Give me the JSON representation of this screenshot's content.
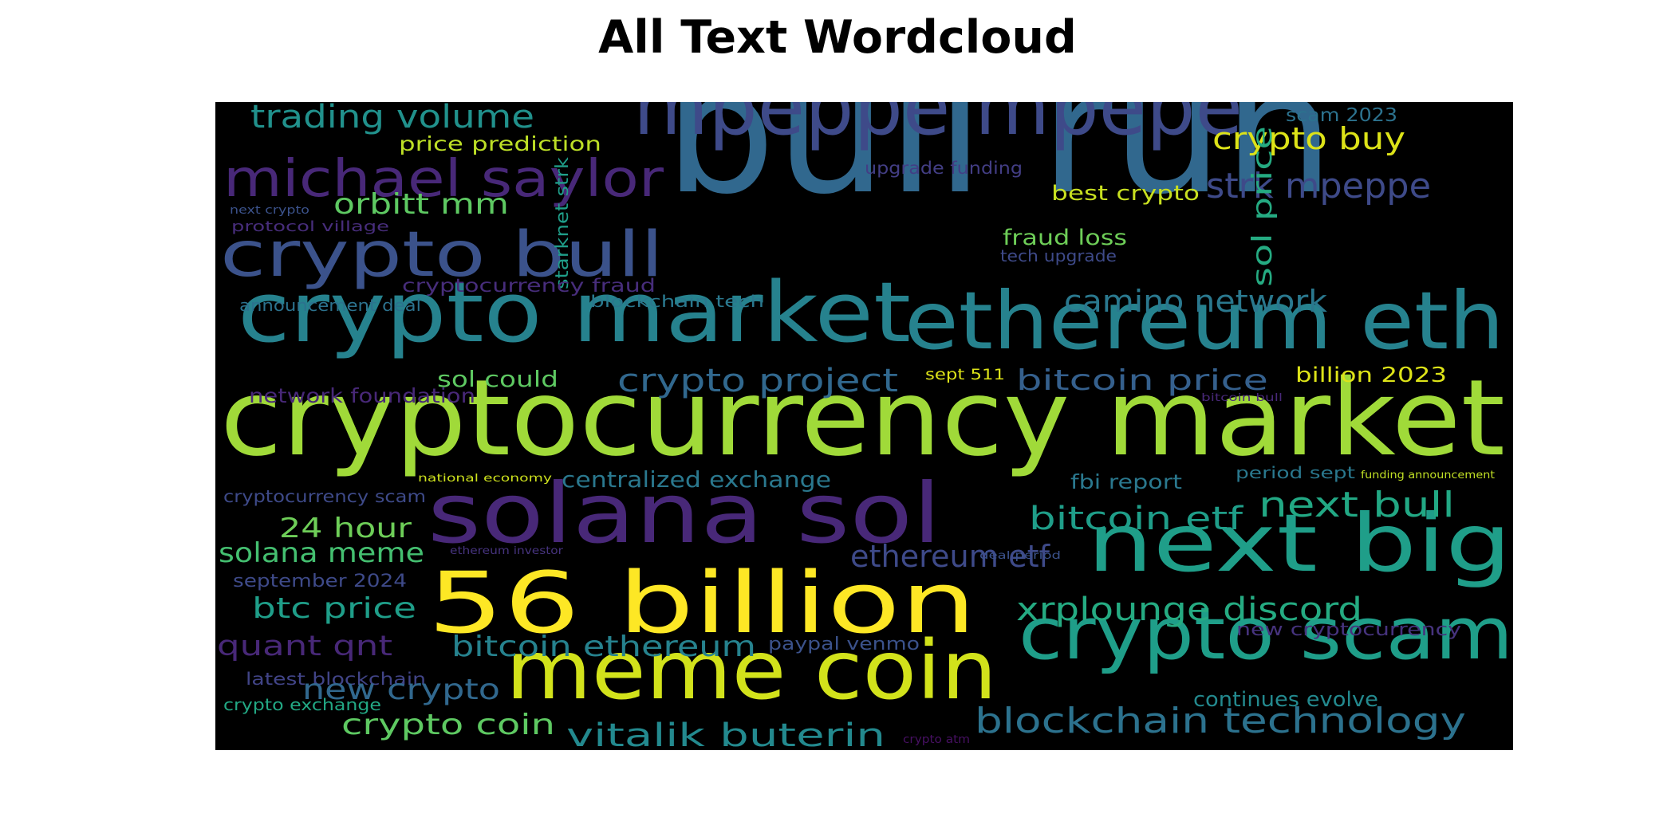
{
  "chart_data": {
    "type": "wordcloud",
    "title": "All Text Wordcloud",
    "background": "#000000",
    "words": [
      {
        "text": "bull run",
        "color": "#31688e"
      },
      {
        "text": "cryptocurrency market",
        "color": "#a0da39"
      },
      {
        "text": "crypto market",
        "color": "#26828e"
      },
      {
        "text": "mpeppe mpepe",
        "color": "#3e4a89"
      },
      {
        "text": "ethereum eth",
        "color": "#26828e"
      },
      {
        "text": "solana sol",
        "color": "#482878"
      },
      {
        "text": "56 billion",
        "color": "#fde725"
      },
      {
        "text": "meme coin",
        "color": "#d2e21b"
      },
      {
        "text": "next big",
        "color": "#1f9e89"
      },
      {
        "text": "crypto scam",
        "color": "#1f9e89"
      },
      {
        "text": "crypto bull",
        "color": "#3b528b"
      },
      {
        "text": "michael saylor",
        "color": "#482878"
      },
      {
        "text": "trading volume",
        "color": "#21918c"
      },
      {
        "text": "price prediction",
        "color": "#bddf26"
      },
      {
        "text": "crypto buy",
        "color": "#dde318"
      },
      {
        "text": "scam 2023",
        "color": "#2c728e"
      },
      {
        "text": "strk mpeppe",
        "color": "#3e4a89"
      },
      {
        "text": "sol price",
        "color": "#25ab82"
      },
      {
        "text": "orbitt mm",
        "color": "#5ec962"
      },
      {
        "text": "upgrade funding",
        "color": "#433e85"
      },
      {
        "text": "best crypto",
        "color": "#c8e020"
      },
      {
        "text": "next crypto",
        "color": "#3b528b"
      },
      {
        "text": "protocol village",
        "color": "#472d7b"
      },
      {
        "text": "starknet strk",
        "color": "#1f9e89"
      },
      {
        "text": "fraud loss",
        "color": "#6ece58"
      },
      {
        "text": "tech upgrade",
        "color": "#3e4a89"
      },
      {
        "text": "cryptocurrency fraud",
        "color": "#472d7b"
      },
      {
        "text": "blockchain tech",
        "color": "#2a788e"
      },
      {
        "text": "announcement deal",
        "color": "#2c728e"
      },
      {
        "text": "camino network",
        "color": "#2a788e"
      },
      {
        "text": "crypto project",
        "color": "#31688e"
      },
      {
        "text": "sol could",
        "color": "#5ec962"
      },
      {
        "text": "sept 511",
        "color": "#dde318"
      },
      {
        "text": "bitcoin price",
        "color": "#35608d"
      },
      {
        "text": "billion 2023",
        "color": "#dde318"
      },
      {
        "text": "network foundation",
        "color": "#482878"
      },
      {
        "text": "bitcoin bull",
        "color": "#482878"
      },
      {
        "text": "national economy",
        "color": "#cde11d"
      },
      {
        "text": "centralized exchange",
        "color": "#2a788e"
      },
      {
        "text": "fbi report",
        "color": "#2a788e"
      },
      {
        "text": "period sept",
        "color": "#2a788e"
      },
      {
        "text": "funding announcement",
        "color": "#c0df25"
      },
      {
        "text": "cryptocurrency scam",
        "color": "#3e4a89"
      },
      {
        "text": "next bull",
        "color": "#22a884"
      },
      {
        "text": "24 hour",
        "color": "#6ece58"
      },
      {
        "text": "bitcoin etf",
        "color": "#1f9e89"
      },
      {
        "text": "solana meme",
        "color": "#44bf70"
      },
      {
        "text": "ethereum investor",
        "color": "#46337e"
      },
      {
        "text": "ethereum etf",
        "color": "#3e4a89"
      },
      {
        "text": "deal period",
        "color": "#3b528b"
      },
      {
        "text": "september 2024",
        "color": "#3e4a89"
      },
      {
        "text": "btc price",
        "color": "#1f9e89"
      },
      {
        "text": "xrplounge discord",
        "color": "#25ab82"
      },
      {
        "text": "new cryptocurrency",
        "color": "#46337e"
      },
      {
        "text": "quant qnt",
        "color": "#482878"
      },
      {
        "text": "bitcoin ethereum",
        "color": "#26828e"
      },
      {
        "text": "paypal venmo",
        "color": "#3b528b"
      },
      {
        "text": "latest blockchain",
        "color": "#414487"
      },
      {
        "text": "new crypto",
        "color": "#31688e"
      },
      {
        "text": "crypto exchange",
        "color": "#22a884"
      },
      {
        "text": "continues evolve",
        "color": "#23898e"
      },
      {
        "text": "crypto coin",
        "color": "#5ec962"
      },
      {
        "text": "vitalik buterin",
        "color": "#23898e"
      },
      {
        "text": "blockchain technology",
        "color": "#2c728e"
      },
      {
        "text": "crypto atm",
        "color": "#471063"
      }
    ]
  }
}
